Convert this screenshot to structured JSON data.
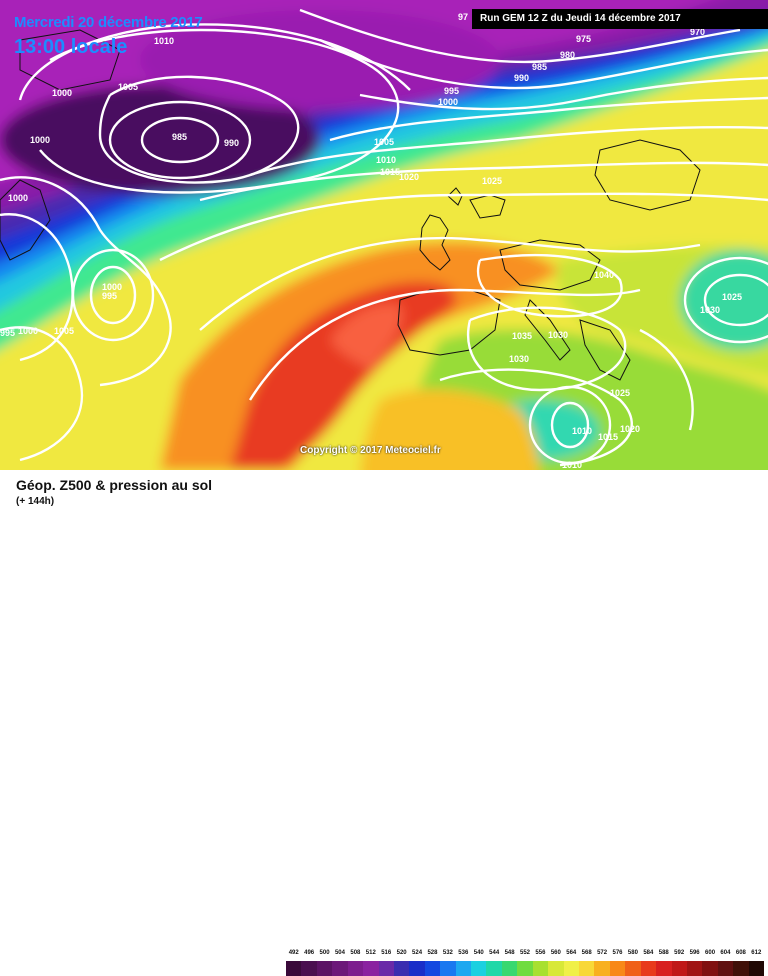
{
  "header": {
    "date_label": "Mercredi 20 décembre 2017",
    "time_label": "13:00 locale",
    "run_label": "Run GEM 12 Z du Jeudi 14 décembre 2017"
  },
  "map": {
    "copyright": "Copyright © 2017 Meteociel.fr",
    "isobar_labels": [
      {
        "text": "1010"
      },
      {
        "text": "1005"
      },
      {
        "text": "1000"
      },
      {
        "text": "1000"
      },
      {
        "text": "985"
      },
      {
        "text": "990"
      },
      {
        "text": "1000"
      },
      {
        "text": "1000"
      },
      {
        "text": "995"
      },
      {
        "text": "995"
      },
      {
        "text": "1000"
      },
      {
        "text": "1005"
      },
      {
        "text": "97"
      },
      {
        "text": "975"
      },
      {
        "text": "980"
      },
      {
        "text": "985"
      },
      {
        "text": "990"
      },
      {
        "text": "970"
      },
      {
        "text": "995"
      },
      {
        "text": "1000"
      },
      {
        "text": "1005"
      },
      {
        "text": "1010"
      },
      {
        "text": "1015"
      },
      {
        "text": "1020"
      },
      {
        "text": "1025"
      },
      {
        "text": "1040"
      },
      {
        "text": "1035"
      },
      {
        "text": "1030"
      },
      {
        "text": "1025"
      },
      {
        "text": "1030"
      },
      {
        "text": "1010"
      },
      {
        "text": "1015"
      },
      {
        "text": "1020"
      },
      {
        "text": "1010"
      },
      {
        "text": "1025"
      },
      {
        "text": "1030"
      }
    ]
  },
  "legend": {
    "title": "Géop. Z500 & pression au sol",
    "subtitle": "(+ 144h)",
    "scale_values": [
      "492",
      "496",
      "500",
      "504",
      "508",
      "512",
      "516",
      "520",
      "524",
      "528",
      "532",
      "536",
      "540",
      "544",
      "548",
      "552",
      "556",
      "560",
      "564",
      "568",
      "572",
      "576",
      "580",
      "584",
      "588",
      "592",
      "596",
      "600",
      "604",
      "608",
      "612"
    ],
    "scale_colors": [
      "#3a0a3a",
      "#4a0f4f",
      "#5b1364",
      "#6c1879",
      "#7d1d8e",
      "#8a22a0",
      "#6a2aa8",
      "#3a2eb0",
      "#1a2ec8",
      "#1448e0",
      "#1a78f0",
      "#1ea8f0",
      "#1cd0e0",
      "#20d8a8",
      "#38d870",
      "#70dc40",
      "#a8e030",
      "#d8e838",
      "#f0f048",
      "#f8d838",
      "#f8b020",
      "#f88818",
      "#f06018",
      "#e83a1c",
      "#d82020",
      "#c01818",
      "#a01414",
      "#801010",
      "#601010",
      "#401008",
      "#200804"
    ]
  }
}
